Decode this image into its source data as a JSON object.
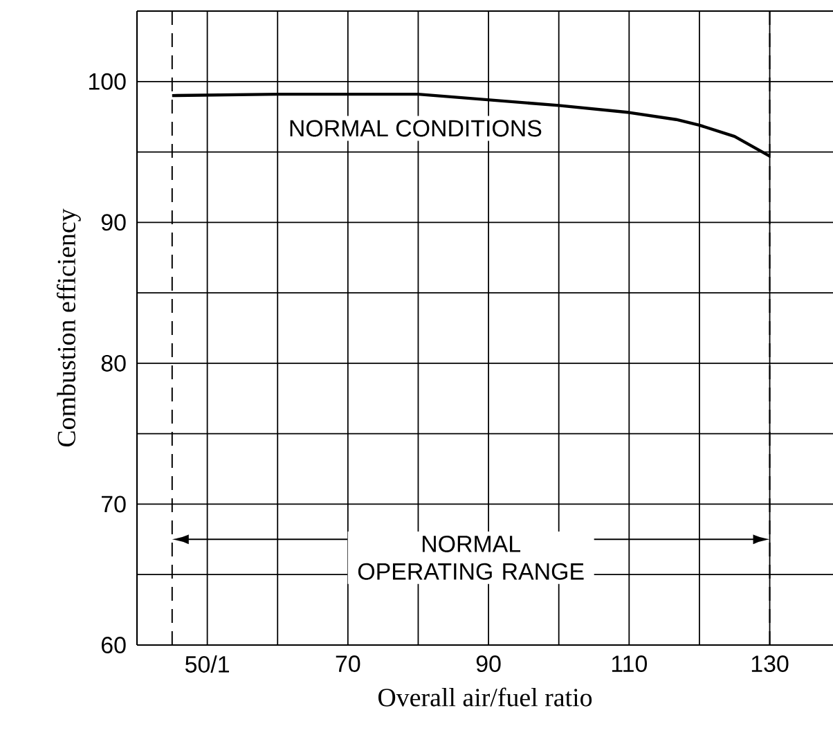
{
  "chart_data": {
    "type": "line",
    "xlabel": "Overall air/fuel ratio",
    "ylabel": "Combustion efficiency",
    "x": [
      45,
      60,
      80,
      100,
      110,
      116.7,
      120,
      125,
      130
    ],
    "series": [
      {
        "color": "#000000",
        "values": [
          99.0,
          99.1,
          99.1,
          98.3,
          97.8,
          97.3,
          96.9,
          96.1,
          94.7
        ]
      }
    ],
    "xlim": [
      40,
      139
    ],
    "ylim": [
      60,
      105
    ],
    "xticks": [
      {
        "value": 40,
        "label": null
      },
      {
        "value": 50,
        "label": "50/1"
      },
      {
        "value": 60,
        "label": null
      },
      70,
      {
        "value": 80,
        "label": null
      },
      90,
      {
        "value": 100,
        "label": null
      },
      110,
      {
        "value": 120,
        "label": null
      },
      130
    ],
    "yticks": [
      60,
      {
        "value": 65,
        "label": null
      },
      70,
      {
        "value": 75,
        "label": null
      },
      80,
      {
        "value": 85,
        "label": null
      },
      90,
      {
        "value": 95,
        "label": null
      },
      100,
      {
        "value": 105,
        "label": null
      }
    ],
    "grid": true,
    "marker": "none",
    "line_style": "solid",
    "ref_lines": [
      {
        "axis": "x",
        "value": 45,
        "line_style": "dashed"
      },
      {
        "axis": "x",
        "value": 130,
        "line_style": "dashed"
      }
    ],
    "annotations": [
      "NORMAL CONDITIONS",
      "NORMAL OPERATING RANGE"
    ]
  }
}
